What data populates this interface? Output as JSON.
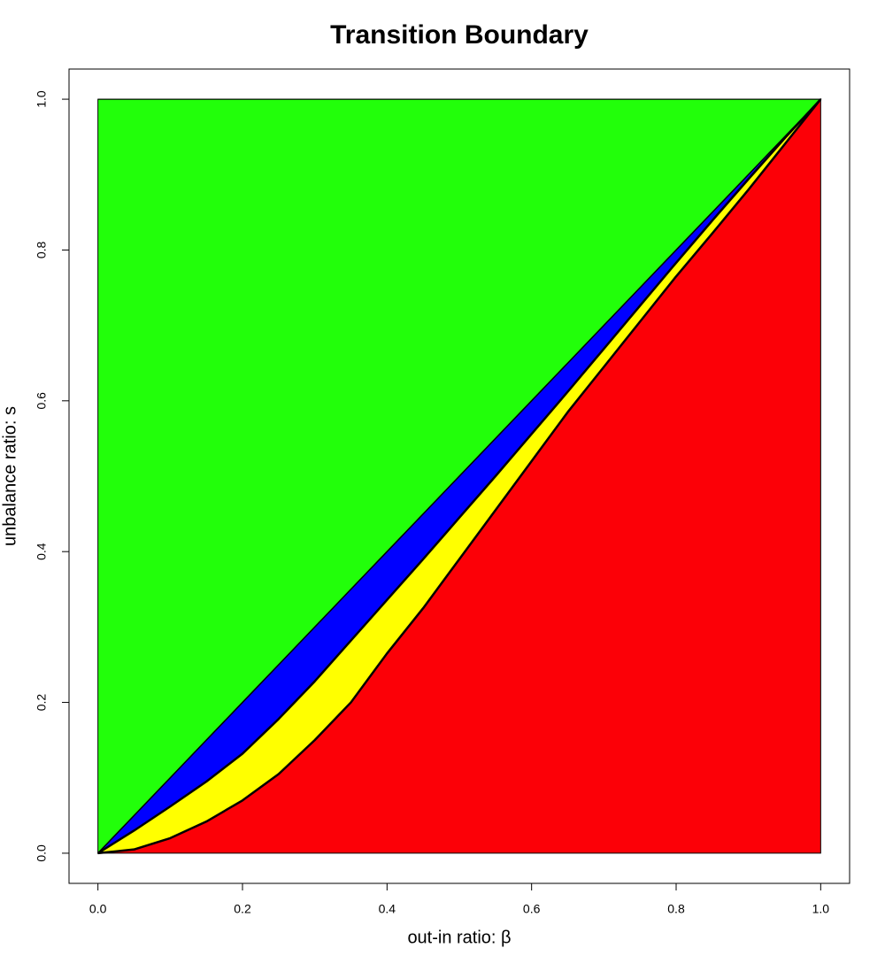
{
  "chart_data": {
    "type": "area",
    "title": "Transition Boundary",
    "x_label": "out-in ratio: β",
    "y_label": "unbalance ratio: s",
    "x": [
      0,
      0.05,
      0.1,
      0.15,
      0.2,
      0.25,
      0.3,
      0.35,
      0.4,
      0.45,
      0.5,
      0.55,
      0.6,
      0.65,
      0.7,
      0.75,
      0.8,
      0.85,
      0.9,
      0.95,
      1
    ],
    "series": [
      {
        "color": "#22ff0a",
        "line_width": 1,
        "values": [
          1,
          1,
          1,
          1,
          1,
          1,
          1,
          1,
          1,
          1,
          1,
          1,
          1,
          1,
          1,
          1,
          1,
          1,
          1,
          1,
          1
        ]
      },
      {
        "color": "#0000ff",
        "line_width": 1.5,
        "values": [
          0,
          0.05,
          0.1,
          0.15,
          0.2,
          0.25,
          0.3,
          0.35,
          0.4,
          0.45,
          0.5,
          0.55,
          0.6,
          0.65,
          0.7,
          0.75,
          0.8,
          0.85,
          0.9,
          0.95,
          1
        ]
      },
      {
        "color": "#ffff00",
        "line_width": 2.5,
        "values": [
          0,
          0.03,
          0.062,
          0.095,
          0.132,
          0.178,
          0.228,
          0.282,
          0.336,
          0.39,
          0.445,
          0.5,
          0.556,
          0.612,
          0.669,
          0.726,
          0.783,
          0.839,
          0.894,
          0.948,
          1
        ]
      },
      {
        "color": "#fc0007",
        "line_width": 2.5,
        "values": [
          0,
          0.005,
          0.02,
          0.042,
          0.07,
          0.105,
          0.15,
          0.2,
          0.265,
          0.325,
          0.39,
          0.455,
          0.52,
          0.585,
          0.645,
          0.705,
          0.765,
          0.822,
          0.88,
          0.94,
          1
        ]
      }
    ],
    "xlim": [
      -0.04,
      1.04
    ],
    "ylim": [
      -0.04,
      1.04
    ],
    "xticks": [
      {
        "value": 0,
        "label": "0.0"
      },
      0.2,
      0.4,
      0.6,
      0.8,
      {
        "value": 1,
        "label": "1.0"
      }
    ],
    "yticks": [
      {
        "value": 0,
        "label": "0.0"
      },
      0.2,
      0.4,
      0.6,
      0.8,
      {
        "value": 1,
        "label": "1.0"
      }
    ],
    "grid": false
  }
}
